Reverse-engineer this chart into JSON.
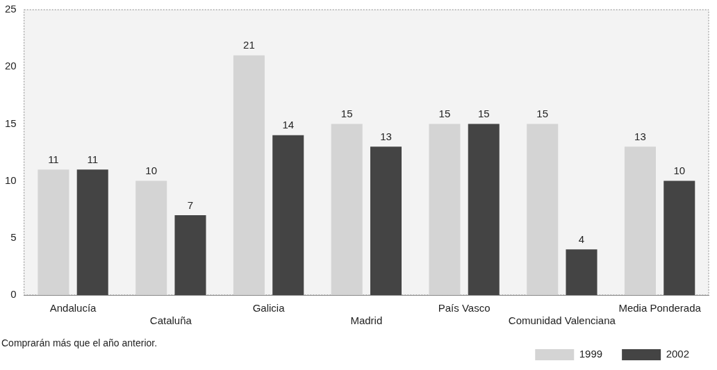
{
  "chart_data": {
    "type": "bar",
    "categories": [
      "Andalucía",
      "Cataluña",
      "Galicia",
      "Madrid",
      "País Vasco",
      "Comunidad Valenciana",
      "Media Ponderada"
    ],
    "series": [
      {
        "name": "1999",
        "color": "#d4d4d4",
        "values": [
          11,
          10,
          21,
          15,
          15,
          15,
          13
        ]
      },
      {
        "name": "2002",
        "color": "#444444",
        "values": [
          11,
          7,
          14,
          13,
          15,
          4,
          10
        ]
      }
    ],
    "ylim": [
      0,
      25
    ],
    "yticks": [
      0,
      5,
      10,
      15,
      20,
      25
    ],
    "grid": false,
    "legend": "bottom right",
    "data_labels": true,
    "annotations": [
      "Comprarán más que el año anterior."
    ]
  }
}
